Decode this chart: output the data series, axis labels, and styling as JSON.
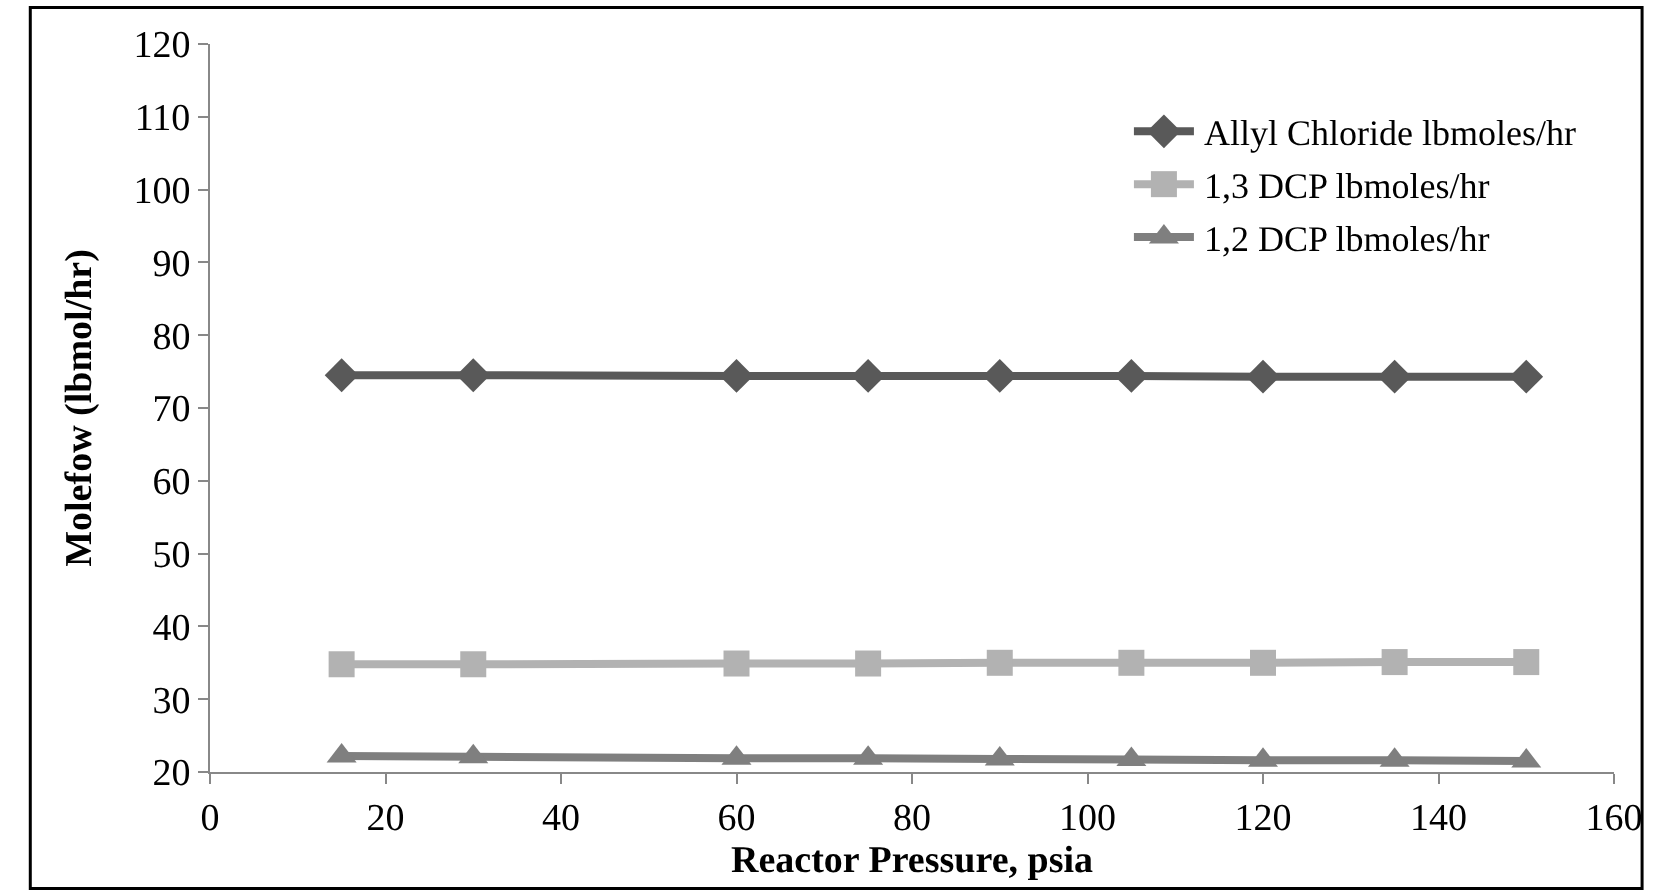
{
  "chart_data": {
    "type": "line",
    "xlabel": "Reactor Pressure, psia",
    "ylabel": "Molefow (lbmol/hr)",
    "x": [
      15,
      30,
      60,
      75,
      90,
      105,
      120,
      135,
      150
    ],
    "series": [
      {
        "name": "Allyl Chloride lbmoles/hr",
        "color": "#595959",
        "marker": "diamond",
        "values": [
          74.5,
          74.5,
          74.4,
          74.4,
          74.4,
          74.4,
          74.3,
          74.3,
          74.3
        ]
      },
      {
        "name": "1,3 DCP lbmoles/hr",
        "color": "#b2b2b2",
        "marker": "square",
        "values": [
          34.8,
          34.8,
          34.9,
          34.9,
          35.0,
          35.0,
          35.0,
          35.1,
          35.1
        ]
      },
      {
        "name": "1,2 DCP lbmoles/hr",
        "color": "#7f7f7f",
        "marker": "triangle",
        "values": [
          22.2,
          22.1,
          21.9,
          21.9,
          21.8,
          21.7,
          21.6,
          21.6,
          21.5
        ]
      }
    ],
    "xlim": [
      0,
      160
    ],
    "xticks": [
      0,
      20,
      40,
      60,
      80,
      100,
      120,
      140,
      160
    ],
    "ylim": [
      20,
      120
    ],
    "yticks": [
      20,
      30,
      40,
      50,
      60,
      70,
      80,
      90,
      100,
      110,
      120
    ],
    "legend": "top right",
    "line_style": "solid"
  }
}
